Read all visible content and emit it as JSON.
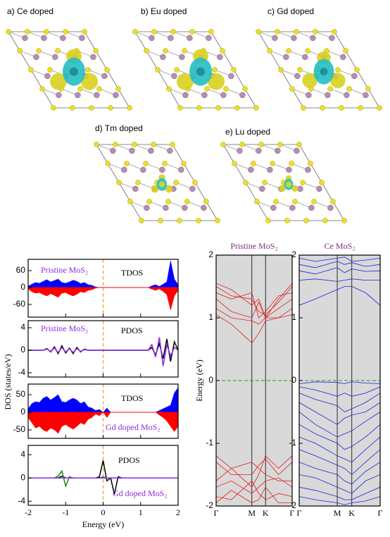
{
  "structures": [
    {
      "label": "a) Ce doped"
    },
    {
      "label": "b) Eu doped"
    },
    {
      "label": "c) Gd doped"
    },
    {
      "label": "d) Tm doped"
    },
    {
      "label": "e) Lu doped"
    }
  ],
  "chart_data": [
    {
      "type": "area",
      "ylabel": "DOS (states/eV)",
      "xlim": [
        -2,
        2
      ],
      "xticks": [
        -2,
        -1,
        0,
        1,
        2
      ],
      "ylim": [
        -105,
        100
      ],
      "yticks": [
        60,
        0,
        -60
      ],
      "vline": 0,
      "vline_color": "#f0a030",
      "x": [
        -2,
        -1.9,
        -1.8,
        -1.7,
        -1.6,
        -1.5,
        -1.4,
        -1.3,
        -1.2,
        -1.1,
        -1,
        -0.9,
        -0.8,
        -0.7,
        -0.6,
        -0.5,
        -0.4,
        -0.3,
        -0.2,
        -0.1,
        0,
        0.1,
        0.2,
        0.3,
        0.4,
        0.5,
        0.6,
        0.7,
        0.8,
        0.9,
        1,
        1.1,
        1.2,
        1.3,
        1.4,
        1.5,
        1.6,
        1.7,
        1.8,
        1.9,
        2
      ],
      "series": [
        {
          "color": "#0000ff",
          "values": [
            5,
            12,
            18,
            15,
            22,
            28,
            20,
            25,
            30,
            18,
            15,
            20,
            26,
            22,
            14,
            18,
            10,
            8,
            2,
            0,
            0,
            0,
            0,
            0,
            0,
            0,
            0,
            0,
            0,
            0,
            0,
            0,
            0,
            6,
            10,
            4,
            12,
            20,
            95,
            30,
            10
          ]
        },
        {
          "color": "#ff0000",
          "values": [
            -5,
            -15,
            -20,
            -18,
            -25,
            -30,
            -22,
            -28,
            -35,
            -20,
            -18,
            -25,
            -30,
            -24,
            -15,
            -18,
            -10,
            -8,
            -2,
            0,
            0,
            0,
            0,
            0,
            0,
            0,
            0,
            0,
            0,
            0,
            0,
            0,
            0,
            -6,
            -10,
            -5,
            -14,
            -25,
            -80,
            -30,
            -10
          ]
        }
      ],
      "annotations": [
        {
          "text": "Pristine MoS₂",
          "color": "#8a2be2"
        },
        {
          "text": "TDOS",
          "color": "#000000"
        }
      ]
    },
    {
      "type": "line",
      "xlim": [
        -2,
        2
      ],
      "xticks": [
        -2,
        -1,
        0,
        1,
        2
      ],
      "ylim": [
        -4.75,
        5.25
      ],
      "yticks": [
        4,
        0,
        -4
      ],
      "vline": 0,
      "vline_color": "#f0a030",
      "x": [
        -2,
        -1.9,
        -1.8,
        -1.7,
        -1.6,
        -1.5,
        -1.4,
        -1.3,
        -1.2,
        -1.1,
        -1,
        -0.9,
        -0.8,
        -0.7,
        -0.6,
        -0.5,
        -0.4,
        -0.3,
        -0.2,
        -0.1,
        0,
        0.1,
        0.2,
        0.3,
        0.4,
        0.5,
        0.6,
        0.7,
        0.8,
        0.9,
        1,
        1.1,
        1.2,
        1.3,
        1.4,
        1.5,
        1.6,
        1.7,
        1.8,
        1.9,
        2
      ],
      "series": [
        {
          "color": "#000000",
          "values": [
            0,
            0,
            0,
            0,
            0,
            0.3,
            -0.3,
            0.6,
            -0.6,
            0.8,
            -0.5,
            0.4,
            -0.6,
            0.5,
            -0.3,
            0.2,
            0,
            0,
            0,
            0,
            0,
            0,
            0,
            0,
            0,
            0,
            0,
            0,
            0,
            0,
            0,
            0,
            0,
            0.5,
            -0.8,
            1.2,
            -1.5,
            2.0,
            -2.0,
            1.5,
            0
          ]
        },
        {
          "color": "#8a2be2",
          "values": [
            0,
            0,
            0,
            0,
            0,
            0.2,
            -0.2,
            0.4,
            -0.4,
            0.5,
            -0.3,
            0.3,
            -0.4,
            0.3,
            -0.2,
            0.1,
            0,
            0,
            0,
            0,
            0,
            0,
            0,
            0,
            0,
            0,
            0,
            0,
            0,
            0,
            0,
            0,
            0,
            1.0,
            -1.2,
            2.3,
            -2.8,
            1.0,
            -1.0,
            0.5,
            0
          ]
        }
      ],
      "annotations": [
        {
          "text": "Pristine MoS₂",
          "color": "#8a2be2"
        },
        {
          "text": "PDOS",
          "color": "#000000"
        }
      ]
    },
    {
      "type": "area",
      "xlim": [
        -2,
        2
      ],
      "xticks": [
        -2,
        -1,
        0,
        1,
        2
      ],
      "ylim": [
        -74,
        80
      ],
      "yticks": [
        50,
        0,
        -50
      ],
      "vline": 0,
      "vline_color": "#f0a030",
      "x": [
        -2,
        -1.9,
        -1.8,
        -1.7,
        -1.6,
        -1.5,
        -1.4,
        -1.3,
        -1.2,
        -1.1,
        -1,
        -0.9,
        -0.8,
        -0.7,
        -0.6,
        -0.5,
        -0.4,
        -0.3,
        -0.2,
        -0.1,
        0,
        0.1,
        0.2,
        0.3,
        0.4,
        0.5,
        0.6,
        0.7,
        0.8,
        0.9,
        1,
        1.1,
        1.2,
        1.3,
        1.4,
        1.5,
        1.6,
        1.7,
        1.8,
        1.9,
        2
      ],
      "series": [
        {
          "color": "#0000ff",
          "values": [
            10,
            25,
            30,
            28,
            40,
            45,
            35,
            42,
            50,
            30,
            28,
            35,
            40,
            35,
            25,
            30,
            15,
            12,
            5,
            8,
            0,
            12,
            0,
            0,
            0,
            0,
            0,
            0,
            0,
            0,
            0,
            0,
            0,
            0,
            0,
            5,
            10,
            15,
            20,
            55,
            70
          ]
        },
        {
          "color": "#ff0000",
          "values": [
            -15,
            -30,
            -45,
            -40,
            -50,
            -55,
            -45,
            -50,
            -60,
            -40,
            -35,
            -42,
            -48,
            -40,
            -30,
            -35,
            -20,
            -15,
            -5,
            -10,
            0,
            -15,
            0,
            0,
            0,
            0,
            0,
            0,
            0,
            0,
            0,
            0,
            0,
            0,
            0,
            -8,
            -15,
            -25,
            -40,
            -55,
            -40
          ]
        }
      ],
      "annotations": [
        {
          "text": "TDOS",
          "color": "#000000"
        },
        {
          "text": "Gd doped MoS₂",
          "color": "#8a2be2"
        }
      ]
    },
    {
      "type": "line",
      "xlabel": "Energy (eV)",
      "xtick_labels": true,
      "xlim": [
        -2,
        2
      ],
      "xticks": [
        -2,
        -1,
        0,
        1,
        2
      ],
      "ylim": [
        -4.7,
        5.6
      ],
      "yticks": [
        4,
        0,
        -4
      ],
      "vline": 0,
      "vline_color": "#f0a030",
      "x": [
        -2,
        -1.9,
        -1.8,
        -1.7,
        -1.6,
        -1.5,
        -1.4,
        -1.3,
        -1.2,
        -1.1,
        -1,
        -0.9,
        -0.8,
        -0.7,
        -0.6,
        -0.5,
        -0.4,
        -0.3,
        -0.2,
        -0.1,
        0,
        0.1,
        0.2,
        0.3,
        0.4,
        0.5,
        0.6,
        0.7,
        0.8,
        0.9,
        1,
        1.1,
        1.2,
        1.3,
        1.4,
        1.5,
        1.6,
        1.7,
        1.8,
        1.9,
        2
      ],
      "series": [
        {
          "color": "#000000",
          "values": [
            0,
            0,
            0,
            0,
            0,
            0,
            0,
            0,
            0,
            0.3,
            0,
            0,
            0,
            0,
            0,
            0,
            0,
            0,
            0,
            0.2,
            3.0,
            -0.5,
            0,
            -2.8,
            0.2,
            0,
            0,
            0,
            0,
            0,
            0,
            0,
            0,
            0,
            0,
            0,
            0,
            0,
            0,
            0,
            0
          ]
        },
        {
          "color": "#1a8a1a",
          "values": [
            0,
            0,
            0,
            0,
            0,
            0,
            0,
            0,
            0.3,
            1.2,
            -1.4,
            0.2,
            0,
            0,
            0,
            0,
            0,
            0,
            0,
            0,
            0,
            0,
            0,
            0,
            0,
            0,
            0,
            0,
            0,
            0,
            0,
            0,
            0,
            0,
            0,
            0,
            0,
            0,
            0,
            0,
            0
          ]
        },
        {
          "color": "#8a2be2",
          "values": [
            0,
            0,
            0,
            0,
            0,
            0,
            0,
            0,
            0,
            0,
            0,
            0,
            0,
            0,
            0,
            0,
            0,
            0,
            0,
            0,
            0.2,
            0,
            0,
            0,
            0,
            0,
            0,
            0,
            0,
            0,
            0,
            0,
            0,
            0,
            0,
            0,
            0,
            0,
            0,
            0,
            0
          ]
        }
      ],
      "annotations": [
        {
          "text": "PDOS",
          "color": "#000000"
        },
        {
          "text": "Gd doped MoS₂",
          "color": "#8a2be2"
        }
      ]
    },
    {
      "type": "line",
      "title": "Pristine MoS₂",
      "ylabel": "Energy (eV)",
      "background": "#d9d9d9",
      "color": "#e02020",
      "xlim": [
        0,
        1
      ],
      "xticks": [
        {
          "value": 0,
          "label": "Γ"
        },
        {
          "value": 0.47,
          "label": "M"
        },
        {
          "value": 0.65,
          "label": "K"
        },
        {
          "value": 1,
          "label": "Γ"
        }
      ],
      "ylim": [
        -2,
        2
      ],
      "yticks": [
        -2,
        -1,
        0,
        1,
        2
      ],
      "hline": 0,
      "hline_color": "#20a020",
      "xtick_labels": true,
      "x": [
        0,
        0.2,
        0.47,
        0.56,
        0.65,
        0.82,
        1
      ],
      "series": [
        {
          "values": [
            1.55,
            1.45,
            1.2,
            1.3,
            1.0,
            1.3,
            1.55
          ]
        },
        {
          "values": [
            1.5,
            1.35,
            1.3,
            1.1,
            1.05,
            1.25,
            1.5
          ]
        },
        {
          "values": [
            1.4,
            1.3,
            1.4,
            1.0,
            1.1,
            1.35,
            1.4
          ]
        },
        {
          "values": [
            1.3,
            1.1,
            1.0,
            1.25,
            1.0,
            1.15,
            1.3
          ]
        },
        {
          "values": [
            1.15,
            1.0,
            0.95,
            0.9,
            1.0,
            1.0,
            1.15
          ]
        },
        {
          "values": [
            1.05,
            0.9,
            0.6,
            0.75,
            0.95,
            1.0,
            1.05
          ]
        },
        {
          "values": [
            -1.2,
            -1.4,
            -1.7,
            -1.5,
            -1.2,
            -1.4,
            -1.2
          ]
        },
        {
          "values": [
            -1.3,
            -1.5,
            -1.5,
            -1.35,
            -1.25,
            -1.5,
            -1.3
          ]
        },
        {
          "values": [
            -1.6,
            -1.4,
            -1.3,
            -1.4,
            -1.5,
            -1.6,
            -1.6
          ]
        },
        {
          "values": [
            -1.7,
            -1.6,
            -1.8,
            -1.7,
            -1.6,
            -1.55,
            -1.7
          ]
        },
        {
          "values": [
            -1.85,
            -1.9,
            -1.6,
            -1.8,
            -1.9,
            -1.8,
            -1.85
          ]
        },
        {
          "values": [
            -1.95,
            -1.75,
            -1.95,
            -1.9,
            -1.7,
            -1.95,
            -1.95
          ]
        }
      ]
    },
    {
      "type": "line",
      "title": "Ce MoS₂",
      "background": "#d9d9d9",
      "color": "#2020e0",
      "xlim": [
        0,
        1
      ],
      "xticks": [
        {
          "value": 0,
          "label": "Γ"
        },
        {
          "value": 0.47,
          "label": "M"
        },
        {
          "value": 0.65,
          "label": "K"
        },
        {
          "value": 1,
          "label": "Γ"
        }
      ],
      "ylim": [
        -2,
        2
      ],
      "yticks": [
        -2,
        -1,
        0,
        1,
        2
      ],
      "hline": 0,
      "hline_color": "#20a020",
      "xtick_labels": true,
      "x": [
        0,
        0.2,
        0.47,
        0.56,
        0.65,
        0.82,
        1
      ],
      "series": [
        {
          "values": [
            1.95,
            1.9,
            1.95,
            1.97,
            1.9,
            1.92,
            1.95
          ]
        },
        {
          "values": [
            1.85,
            1.8,
            1.9,
            1.85,
            1.88,
            1.82,
            1.85
          ]
        },
        {
          "values": [
            1.75,
            1.7,
            1.8,
            1.72,
            1.78,
            1.74,
            1.75
          ]
        },
        {
          "values": [
            1.6,
            1.62,
            1.58,
            1.6,
            1.62,
            1.6,
            1.6
          ]
        },
        {
          "values": [
            1.2,
            1.3,
            1.45,
            1.5,
            1.5,
            1.4,
            1.2
          ]
        },
        {
          "values": [
            -0.05,
            -0.02,
            -0.03,
            -0.05,
            -0.02,
            -0.04,
            -0.05
          ]
        },
        {
          "values": [
            -0.1,
            -0.15,
            -0.25,
            -0.2,
            -0.25,
            -0.2,
            -0.1
          ]
        },
        {
          "values": [
            -0.2,
            -0.3,
            -0.4,
            -0.5,
            -0.45,
            -0.35,
            -0.2
          ]
        },
        {
          "values": [
            -0.35,
            -0.5,
            -0.7,
            -0.6,
            -0.55,
            -0.5,
            -0.35
          ]
        },
        {
          "values": [
            -0.5,
            -0.7,
            -0.9,
            -0.85,
            -0.8,
            -0.65,
            -0.5
          ]
        },
        {
          "values": [
            -0.7,
            -0.85,
            -1.0,
            -1.1,
            -1.05,
            -0.9,
            -0.7
          ]
        },
        {
          "values": [
            -0.9,
            -1.0,
            -1.2,
            -1.25,
            -1.3,
            -1.1,
            -0.9
          ]
        },
        {
          "values": [
            -1.1,
            -1.2,
            -1.35,
            -1.4,
            -1.5,
            -1.3,
            -1.1
          ]
        },
        {
          "values": [
            -1.3,
            -1.4,
            -1.5,
            -1.6,
            -1.65,
            -1.45,
            -1.3
          ]
        },
        {
          "values": [
            -1.5,
            -1.55,
            -1.7,
            -1.75,
            -1.8,
            -1.6,
            -1.5
          ]
        },
        {
          "values": [
            -1.7,
            -1.75,
            -1.85,
            -1.9,
            -1.9,
            -1.8,
            -1.7
          ]
        },
        {
          "values": [
            -1.85,
            -1.9,
            -1.95,
            -1.98,
            -1.95,
            -1.92,
            -1.85
          ]
        }
      ]
    }
  ]
}
